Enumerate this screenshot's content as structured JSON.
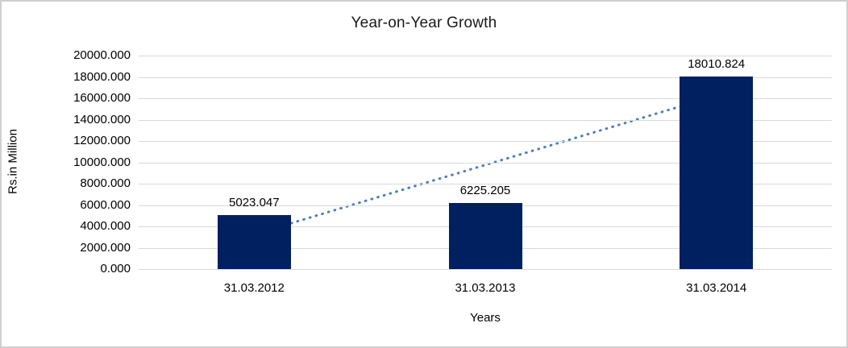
{
  "frame": {
    "background": "#FFFFFF",
    "border_color": "#CFCFCF"
  },
  "chart_data": {
    "type": "bar",
    "title": "Year-on-Year Growth",
    "categories": [
      "31.03.2012",
      "31.03.2013",
      "31.03.2014"
    ],
    "values": [
      5023.047,
      6225.205,
      18010.824
    ],
    "value_labels": [
      "5023.047",
      "6225.205",
      "18010.824"
    ],
    "xlabel": "Years",
    "ylabel": "Rs.in Million",
    "ylim": [
      0,
      20000
    ],
    "ytick_step": 2000,
    "ytick_labels": [
      "20000.000",
      "18000.000",
      "16000.000",
      "14000.000",
      "12000.000",
      "10000.000",
      "8000.000",
      "6000.000",
      "4000.000",
      "2000.000",
      "0.000"
    ],
    "grid": true,
    "legend": "none",
    "bar_color": "#002060",
    "gridline_color": "#D9D9D9",
    "text_color": "#000000",
    "trendline": {
      "type": "linear",
      "style": "dotted",
      "color": "#4A7EBB",
      "start_value": 3259,
      "end_value": 16247
    }
  }
}
